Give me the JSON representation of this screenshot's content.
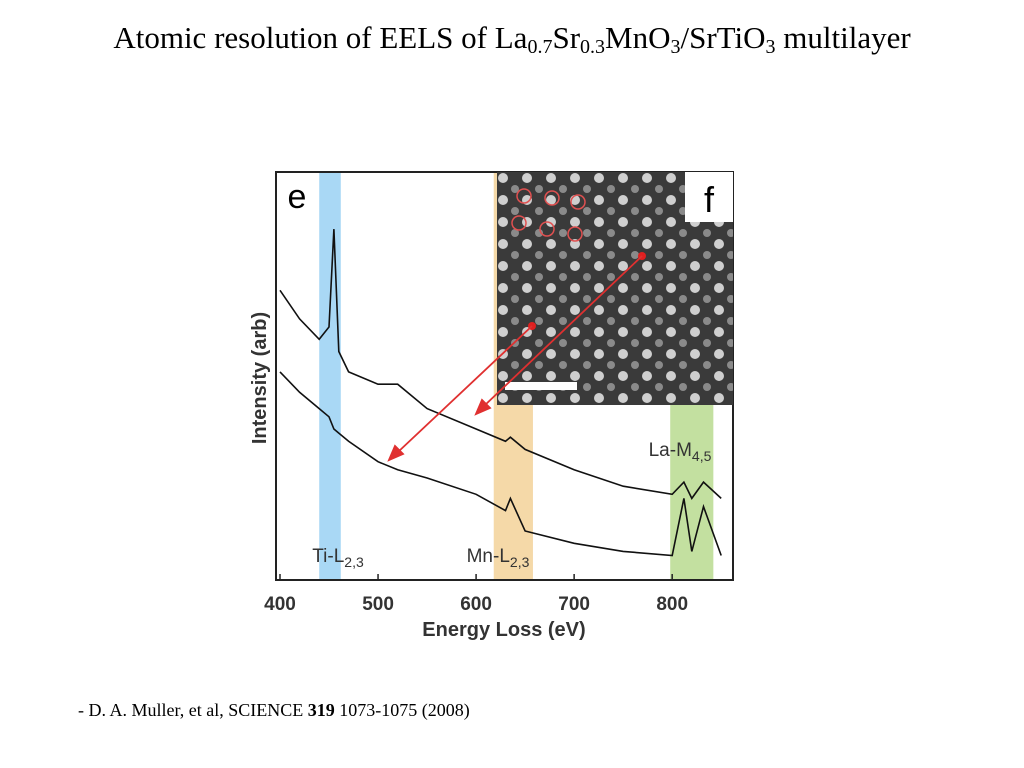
{
  "slide": {
    "title_parts": [
      "Atomic resolution of EELS of La",
      "0.7",
      "Sr",
      "0.3",
      "MnO",
      "3",
      "/SrTiO",
      "3",
      " multilayer"
    ],
    "citation": {
      "author": "- D. A. Muller, et al, SCIENCE",
      "volume": "319",
      "pages": "1073-1075 (2008)"
    }
  },
  "chart_data": {
    "type": "line",
    "panel_label": "e",
    "inset_label": "f",
    "x_label": "Energy Loss (eV)",
    "y_label": "Intensity (arb)",
    "xlim": [
      400,
      860
    ],
    "xticks": [
      400,
      500,
      600,
      700,
      800
    ],
    "ylim": [
      0,
      100
    ],
    "x": [
      400,
      420,
      440,
      450,
      455,
      460,
      470,
      500,
      520,
      550,
      600,
      630,
      635,
      650,
      700,
      750,
      800,
      812,
      820,
      832,
      850
    ],
    "series": [
      {
        "color": "#111111",
        "values": [
          71,
          64,
          59,
          62,
          86,
          56,
          51,
          48,
          48,
          42,
          37,
          34,
          35,
          32,
          27,
          23,
          21,
          24,
          20,
          24,
          20
        ]
      },
      {
        "color": "#111111",
        "values": [
          51,
          46,
          42,
          40,
          37,
          36,
          34,
          29,
          27,
          25,
          21,
          17,
          20,
          12,
          9,
          7,
          6,
          20,
          7,
          18,
          6
        ]
      }
    ],
    "bands": [
      {
        "label": "Ti-L",
        "sub": "2,3",
        "range": [
          440,
          462
        ],
        "color": "#a9d8f5"
      },
      {
        "label": "Mn-L",
        "sub": "2,3",
        "range": [
          618,
          658
        ],
        "color": "#f5d9a8"
      },
      {
        "label": "La-M",
        "sub": "4,5",
        "range": [
          798,
          842
        ],
        "color": "#c3e0a0"
      }
    ]
  }
}
